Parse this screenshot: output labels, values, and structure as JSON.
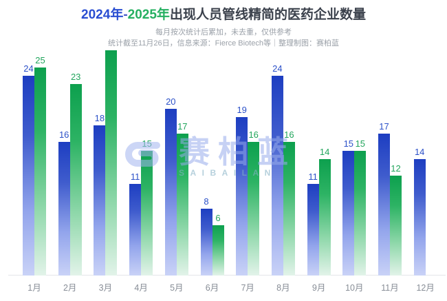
{
  "title": {
    "year_2024": "2024年",
    "dash": "-",
    "year_2025": "2025年",
    "rest": "出现人员管线精简的医药企业数量"
  },
  "subtitle": {
    "line1": "每月按次统计后累加，未去重，仅供参考",
    "line2": "统计截至11月26日，信息来源：Fierce Biotech等｜整理制图：赛柏蓝"
  },
  "watermark": {
    "text": "赛柏蓝",
    "latin": "SAIBAILAN"
  },
  "chart_data": {
    "type": "bar",
    "title": "2024年-2025年出现人员管线精简的医药企业数量",
    "categories": [
      "1月",
      "2月",
      "3月",
      "4月",
      "5月",
      "6月",
      "7月",
      "8月",
      "9月",
      "10月",
      "11月",
      "12月"
    ],
    "series": [
      {
        "name": "2024",
        "values": [
          24,
          16,
          18,
          11,
          20,
          8,
          19,
          24,
          11,
          15,
          17,
          14
        ],
        "color_top": "#1d3ec1",
        "color_bottom": "#c9d2f7",
        "label_color": "#2b50c8"
      },
      {
        "name": "2025",
        "values": [
          25,
          23,
          27,
          15,
          17,
          6,
          16,
          16,
          14,
          15,
          12,
          null
        ],
        "color_top": "#0da04e",
        "color_bottom": "#e2f3e9",
        "label_color": "#21a55c"
      }
    ],
    "hidden_labels": [
      {
        "series": "2025",
        "category": "3月"
      }
    ],
    "ylim": [
      0,
      27
    ],
    "grid": false,
    "legend": "none (series colors indicated by title year colors)",
    "xlabel": "",
    "ylabel": ""
  }
}
